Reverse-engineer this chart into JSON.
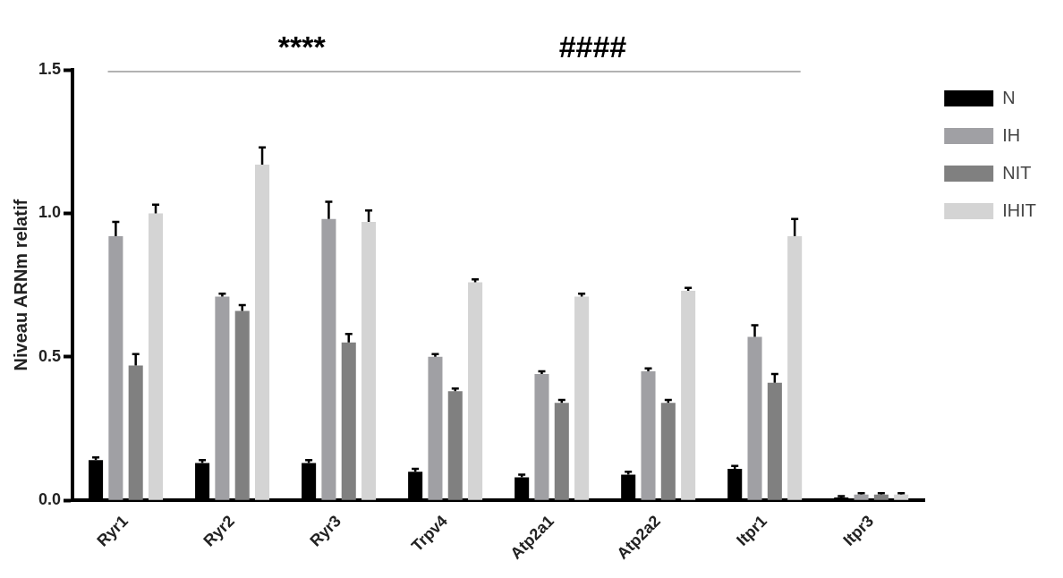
{
  "chart_data": {
    "type": "bar",
    "ylabel": "Niveau ARNm relatif",
    "categories": [
      "Ryr1",
      "Ryr2",
      "Ryr3",
      "Trpv4",
      "Atp2a1",
      "Atp2a2",
      "Itpr1",
      "Itpr3"
    ],
    "series": [
      {
        "name": "N",
        "color": "#000000",
        "values": [
          0.14,
          0.13,
          0.13,
          0.1,
          0.08,
          0.09,
          0.11,
          0.01
        ],
        "errors": [
          0.01,
          0.01,
          0.01,
          0.01,
          0.01,
          0.01,
          0.01,
          0.005
        ]
      },
      {
        "name": "IH",
        "color": "#a0a0a4",
        "values": [
          0.92,
          0.71,
          0.98,
          0.5,
          0.44,
          0.45,
          0.57,
          0.02
        ],
        "errors": [
          0.05,
          0.01,
          0.06,
          0.01,
          0.01,
          0.01,
          0.04,
          0.005
        ]
      },
      {
        "name": "NIT",
        "color": "#808080",
        "values": [
          0.47,
          0.66,
          0.55,
          0.38,
          0.34,
          0.34,
          0.41,
          0.02
        ],
        "errors": [
          0.04,
          0.02,
          0.03,
          0.01,
          0.01,
          0.01,
          0.03,
          0.005
        ]
      },
      {
        "name": "IHIT",
        "color": "#d4d4d4",
        "values": [
          1.0,
          1.17,
          0.97,
          0.76,
          0.71,
          0.73,
          0.92,
          0.02
        ],
        "errors": [
          0.03,
          0.06,
          0.04,
          0.01,
          0.01,
          0.01,
          0.06,
          0.005
        ]
      }
    ],
    "ylim": [
      0,
      1.5
    ],
    "yticks": [
      {
        "value": 0,
        "label": "0.0"
      },
      {
        "value": 0.5,
        "label": "0.5"
      },
      {
        "value": 1,
        "label": "1.0"
      },
      {
        "value": 1.5,
        "label": "1.5"
      }
    ],
    "grid": false,
    "legend": "top right",
    "annotations": [
      "****",
      "####"
    ]
  }
}
